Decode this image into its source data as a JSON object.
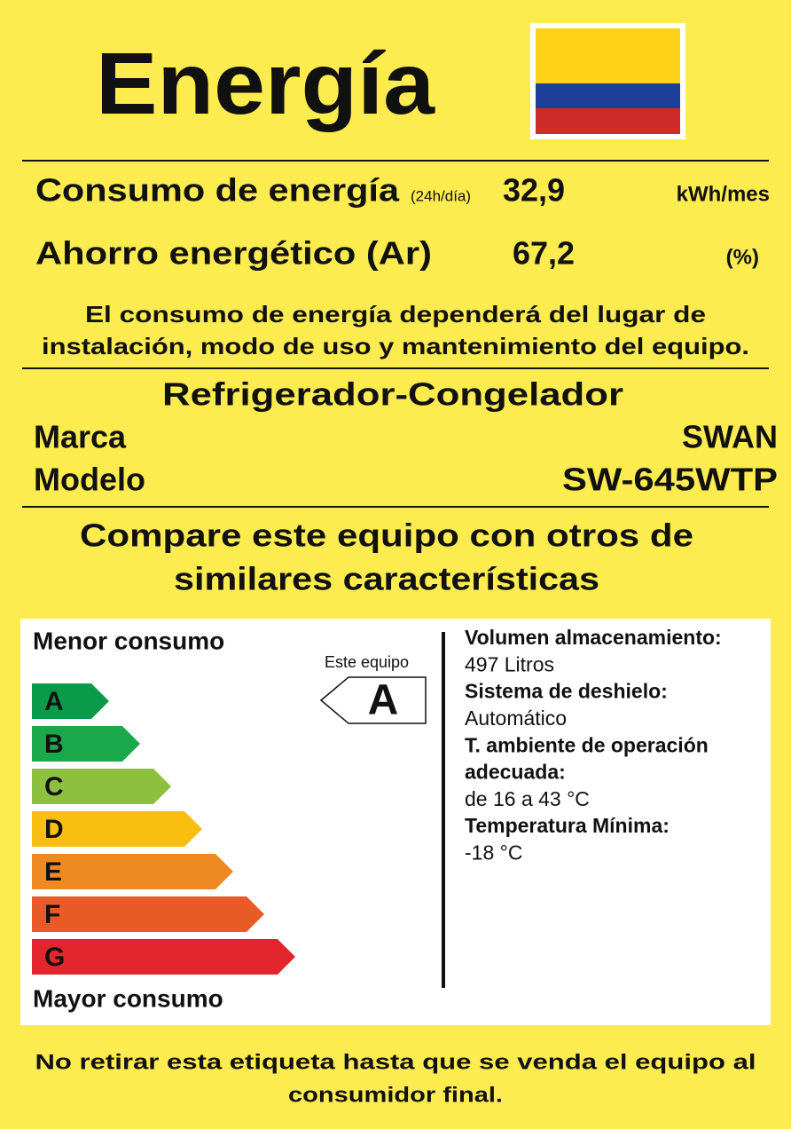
{
  "header": {
    "title": "Energía"
  },
  "consumption": {
    "label": "Consumo de energía",
    "condition": "(24h/día)",
    "value": "32,9",
    "unit": "kWh/mes"
  },
  "savings": {
    "label": "Ahorro energético (Ar)",
    "value": "67,2",
    "unit": "(%)"
  },
  "note": [
    "El consumo de energía dependerá del lugar de",
    "instalación, modo de uso y mantenimiento del equipo."
  ],
  "product": {
    "type": "Refrigerador-Congelador",
    "rows": [
      [
        "Marca",
        "SWAN"
      ],
      [
        "Modelo",
        "SW-645WTP"
      ]
    ]
  },
  "compare": [
    "Compare este equipo con otros de",
    "similares características"
  ],
  "scale": {
    "top": "Menor consumo",
    "bottom": "Mayor consumo",
    "classes": [
      "A",
      "B",
      "C",
      "D",
      "E",
      "F",
      "G"
    ],
    "pointer_label": "Este equipo",
    "rating": "A"
  },
  "specs": [
    {
      "label": [
        "Volumen almacenamiento:"
      ],
      "value": "497 Litros"
    },
    {
      "label": [
        "Sistema de deshielo:"
      ],
      "value": "Automático"
    },
    {
      "label": [
        "T. ambiente de operación",
        "adecuada:"
      ],
      "value": "de 16 a 43 °C"
    },
    {
      "label": [
        "Temperatura Mínima:"
      ],
      "value": "-18 °C"
    }
  ],
  "footer": [
    "No retirar esta etiqueta hasta que se venda el equipo al",
    "consumidor final."
  ]
}
